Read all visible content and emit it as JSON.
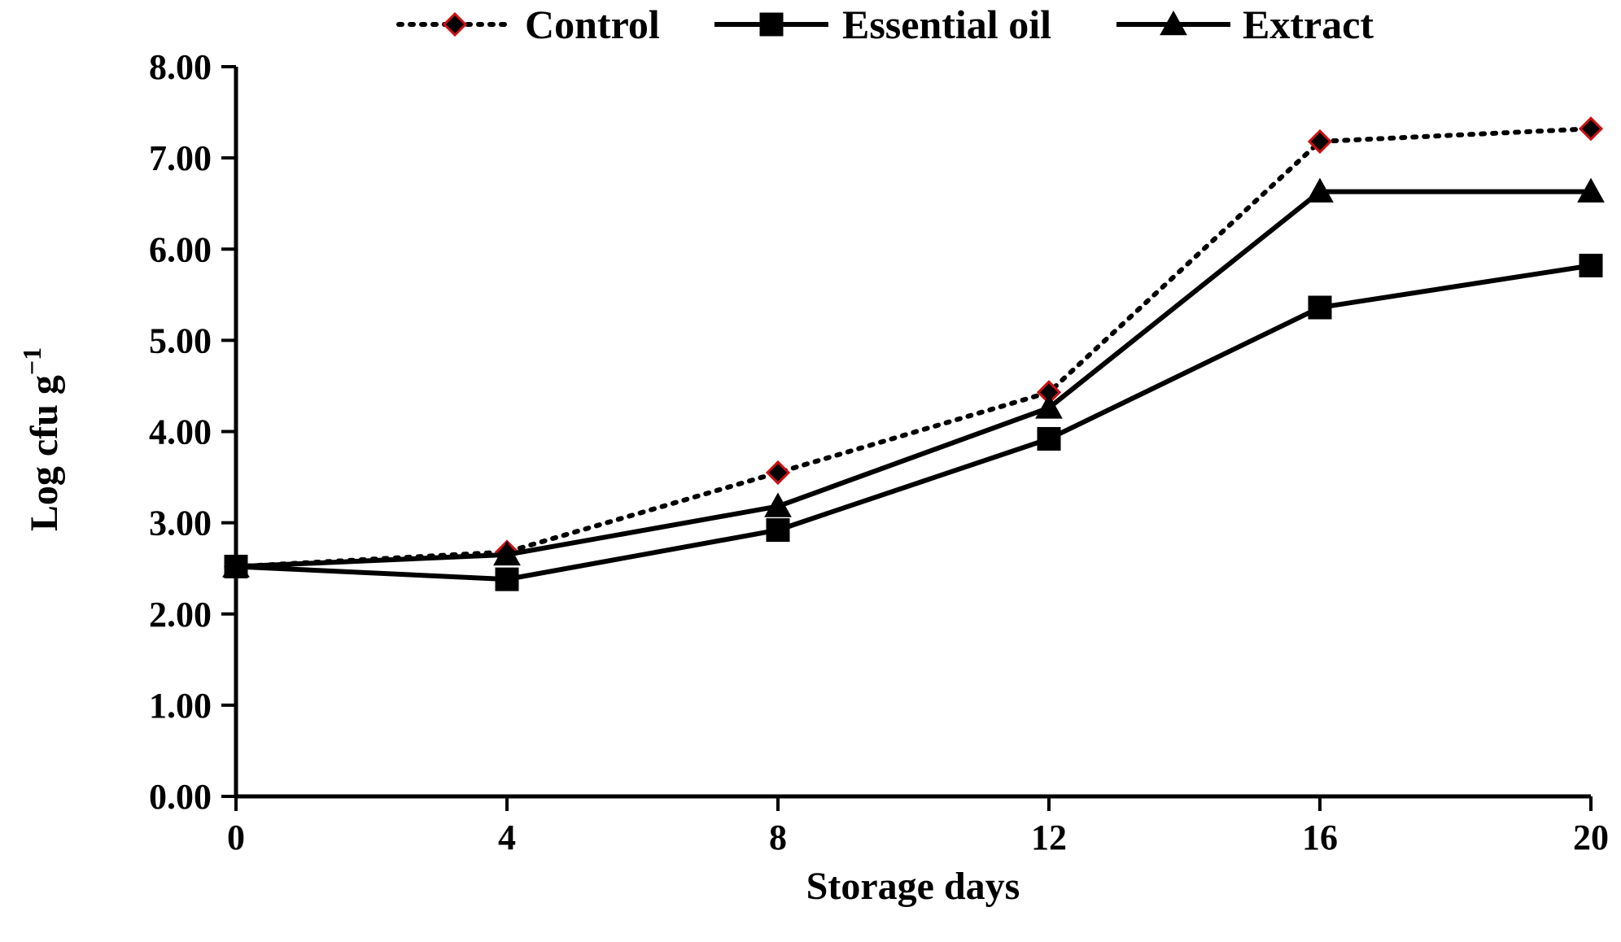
{
  "chart_data": {
    "type": "line",
    "title": "",
    "xlabel": "Storage days",
    "ylabel": "Log cfu g",
    "ylabel_sup": "−1",
    "x": [
      0,
      4,
      8,
      12,
      16,
      20
    ],
    "x_tick_labels": [
      "0",
      "4",
      "8",
      "12",
      "16",
      "20"
    ],
    "xlim": [
      0,
      20
    ],
    "ylim": [
      0,
      8
    ],
    "y_ticks": [
      0,
      1,
      2,
      3,
      4,
      5,
      6,
      7,
      8
    ],
    "y_tick_labels": [
      "0.00",
      "1.00",
      "2.00",
      "3.00",
      "4.00",
      "5.00",
      "6.00",
      "7.00",
      "8.00"
    ],
    "grid": false,
    "legend_position": "top",
    "series": [
      {
        "name": "Control",
        "marker": "diamond",
        "line_style": "dotted",
        "marker_fill": "#000000",
        "marker_edge": "#cc1111",
        "values": [
          2.52,
          2.68,
          3.55,
          4.43,
          7.18,
          7.32
        ]
      },
      {
        "name": "Essential oil",
        "marker": "square",
        "line_style": "solid",
        "marker_fill": "#000000",
        "marker_edge": "#000000",
        "values": [
          2.52,
          2.38,
          2.92,
          3.92,
          5.36,
          5.82
        ]
      },
      {
        "name": "Extract",
        "marker": "triangle",
        "line_style": "solid",
        "marker_fill": "#000000",
        "marker_edge": "#000000",
        "values": [
          2.52,
          2.65,
          3.18,
          4.26,
          6.63,
          6.63
        ]
      }
    ]
  }
}
